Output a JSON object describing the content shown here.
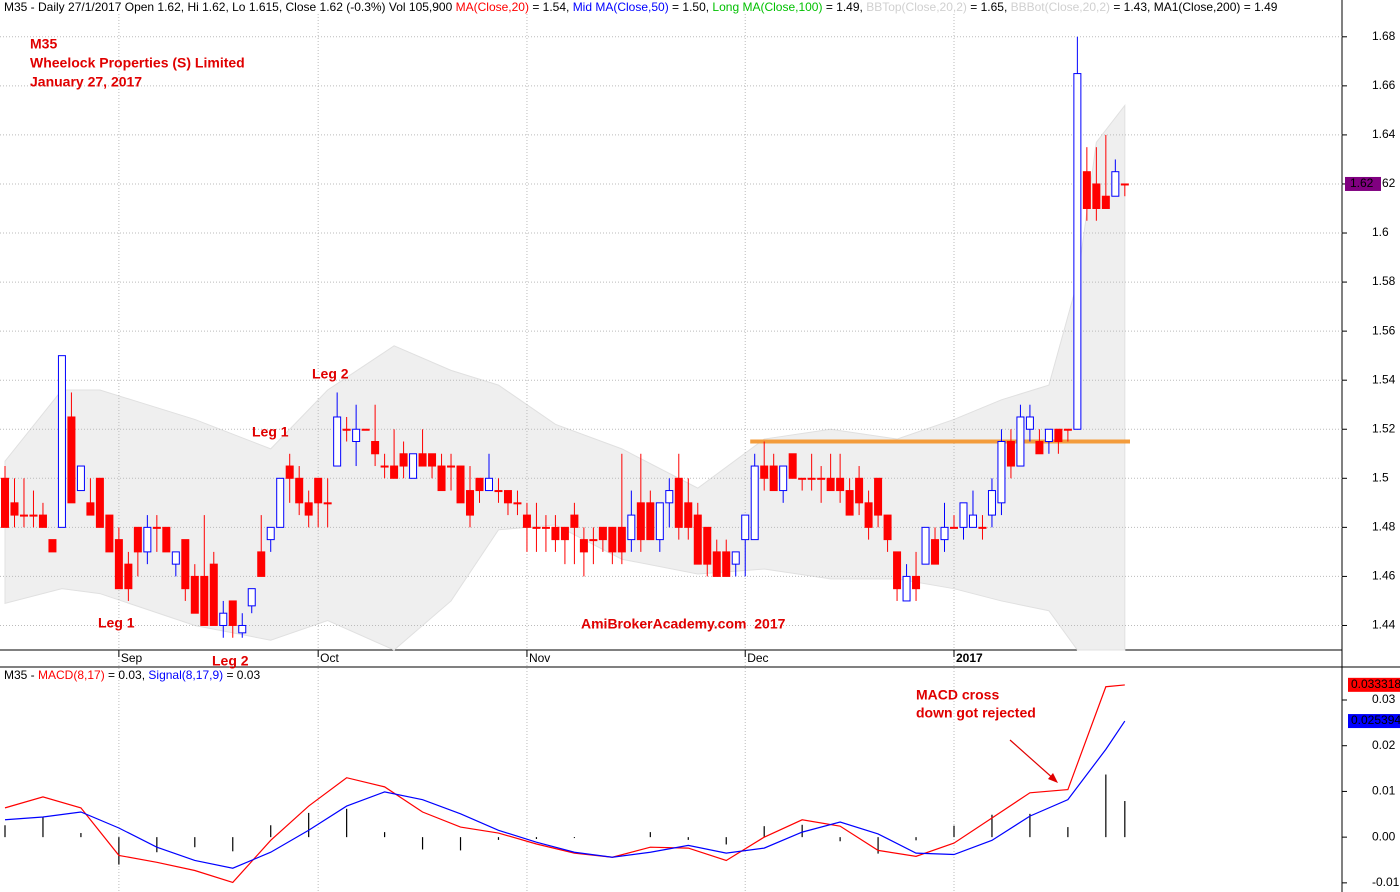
{
  "chart_data": [
    {
      "type": "candlestick",
      "header": [
        {
          "text": "M35 - Daily 27/1/2017 Open 1.62, Hi 1.62, Lo 1.615, Close 1.62 (-0.3%) Vol 105,900 ",
          "color": "#000000"
        },
        {
          "text": "MA(Close,20)",
          "color": "#ff0000"
        },
        {
          "text": " = 1.54, ",
          "color": "#000000"
        },
        {
          "text": "Mid MA(Close,50)",
          "color": "#0000ff"
        },
        {
          "text": " = 1.50, ",
          "color": "#000000"
        },
        {
          "text": "Long MA(Close,100)",
          "color": "#00c000"
        },
        {
          "text": " = 1.49, ",
          "color": "#000000"
        },
        {
          "text": "BBTop(Close,20,2)",
          "color": "#d0d0d0"
        },
        {
          "text": " = 1.65, ",
          "color": "#000000"
        },
        {
          "text": "BBBot(Close,20,2)",
          "color": "#d0d0d0"
        },
        {
          "text": " = 1.43, MA1(Close,200) = 1.49",
          "color": "#000000"
        }
      ],
      "title_lines": [
        "M35",
        "Wheelock Properties (S) Limited",
        "January 27, 2017"
      ],
      "labels": [
        "Leg 1",
        "Leg 2",
        "Leg 1",
        "Leg 2"
      ],
      "watermark": "AmiBrokerAcademy.com  2017",
      "categories": [
        null,
        null,
        null,
        null,
        null,
        null,
        null,
        null,
        null,
        null,
        null,
        null,
        null,
        null,
        null,
        null,
        null,
        null,
        null,
        null,
        null,
        null,
        null,
        null,
        null,
        null,
        null,
        null,
        null,
        null,
        null,
        null,
        null,
        null,
        null,
        null,
        null,
        null,
        null,
        null,
        null,
        null,
        null,
        null,
        null,
        null,
        null,
        null,
        null,
        null,
        null,
        null,
        null,
        null,
        null,
        null,
        null,
        null,
        null,
        null,
        null,
        null,
        null,
        null,
        null,
        null,
        null,
        null,
        null,
        null,
        null,
        null,
        null,
        null,
        null,
        null,
        null,
        null,
        null,
        null,
        null,
        null,
        null,
        null,
        null,
        null,
        null,
        null,
        null,
        null,
        null,
        null,
        null,
        null,
        null,
        null,
        null,
        null,
        null,
        null,
        null,
        null,
        null,
        null,
        null,
        null,
        null,
        null,
        null,
        null,
        null,
        null,
        null,
        null,
        null,
        null,
        null,
        null,
        null
      ],
      "open": [
        1.5,
        1.49,
        1.485,
        1.485,
        1.485,
        1.475,
        1.48,
        1.525,
        1.495,
        1.49,
        1.5,
        1.485,
        1.475,
        1.465,
        1.48,
        1.47,
        1.48,
        1.48,
        1.465,
        1.475,
        1.46,
        1.46,
        1.465,
        1.44,
        1.45,
        1.437,
        1.448,
        1.47,
        1.475,
        1.48,
        1.505,
        1.5,
        1.49,
        1.5,
        1.49,
        1.505,
        1.52,
        1.515,
        1.52,
        1.515,
        1.505,
        1.505,
        1.51,
        1.5,
        1.51,
        1.51,
        1.505,
        1.505,
        1.505,
        1.495,
        1.5,
        1.495,
        1.495,
        1.495,
        1.49,
        1.485,
        1.48,
        1.48,
        1.48,
        1.48,
        1.485,
        1.475,
        1.475,
        1.48,
        1.48,
        1.48,
        1.475,
        1.49,
        1.49,
        1.475,
        1.49,
        1.5,
        1.49,
        1.485,
        1.48,
        1.47,
        1.47,
        1.465,
        1.475,
        1.475,
        1.505,
        1.505,
        1.495,
        1.51,
        1.5,
        1.5,
        1.5,
        1.5,
        1.5,
        1.495,
        1.5,
        1.49,
        1.5,
        1.485,
        1.47,
        1.45,
        1.46,
        1.465,
        1.475,
        1.475,
        1.48,
        1.48,
        1.48,
        1.48,
        1.485,
        1.49,
        1.515,
        1.505,
        1.52,
        1.515,
        1.515,
        1.52,
        1.52,
        1.52,
        1.625,
        1.62,
        1.615,
        1.615,
        1.62
      ],
      "high": [
        1.505,
        1.5,
        1.5,
        1.495,
        1.49,
        1.475,
        1.55,
        1.535,
        1.505,
        1.5,
        1.5,
        1.485,
        1.48,
        1.47,
        1.48,
        1.485,
        1.485,
        1.48,
        1.47,
        1.475,
        1.465,
        1.485,
        1.47,
        1.45,
        1.45,
        1.445,
        1.455,
        1.485,
        1.48,
        1.5,
        1.51,
        1.505,
        1.495,
        1.5,
        1.5,
        1.535,
        1.525,
        1.53,
        1.52,
        1.53,
        1.51,
        1.52,
        1.515,
        1.51,
        1.52,
        1.51,
        1.51,
        1.51,
        1.505,
        1.505,
        1.5,
        1.51,
        1.5,
        1.495,
        1.495,
        1.49,
        1.49,
        1.485,
        1.485,
        1.48,
        1.49,
        1.48,
        1.48,
        1.48,
        1.48,
        1.51,
        1.495,
        1.51,
        1.495,
        1.49,
        1.5,
        1.51,
        1.5,
        1.49,
        1.48,
        1.475,
        1.475,
        1.47,
        1.485,
        1.51,
        1.515,
        1.51,
        1.505,
        1.51,
        1.5,
        1.51,
        1.505,
        1.51,
        1.51,
        1.5,
        1.505,
        1.495,
        1.5,
        1.485,
        1.47,
        1.465,
        1.47,
        1.48,
        1.48,
        1.49,
        1.485,
        1.49,
        1.495,
        1.485,
        1.5,
        1.52,
        1.52,
        1.53,
        1.53,
        1.52,
        1.52,
        1.52,
        1.52,
        1.68,
        1.635,
        1.635,
        1.64,
        1.63,
        1.62
      ],
      "low": [
        1.48,
        1.48,
        1.48,
        1.48,
        1.48,
        1.47,
        1.48,
        1.49,
        1.495,
        1.485,
        1.48,
        1.47,
        1.455,
        1.45,
        1.46,
        1.465,
        1.47,
        1.47,
        1.46,
        1.45,
        1.445,
        1.44,
        1.44,
        1.435,
        1.435,
        1.435,
        1.445,
        1.46,
        1.47,
        1.48,
        1.49,
        1.485,
        1.48,
        1.48,
        1.48,
        1.505,
        1.515,
        1.505,
        1.52,
        1.505,
        1.5,
        1.5,
        1.5,
        1.5,
        1.505,
        1.5,
        1.495,
        1.495,
        1.49,
        1.48,
        1.49,
        1.495,
        1.49,
        1.485,
        1.485,
        1.47,
        1.47,
        1.47,
        1.47,
        1.465,
        1.465,
        1.46,
        1.465,
        1.47,
        1.465,
        1.465,
        1.47,
        1.47,
        1.475,
        1.47,
        1.48,
        1.475,
        1.475,
        1.465,
        1.46,
        1.46,
        1.46,
        1.46,
        1.46,
        1.475,
        1.495,
        1.495,
        1.49,
        1.5,
        1.495,
        1.495,
        1.49,
        1.495,
        1.49,
        1.485,
        1.485,
        1.475,
        1.48,
        1.47,
        1.45,
        1.45,
        1.45,
        1.465,
        1.465,
        1.47,
        1.48,
        1.475,
        1.48,
        1.475,
        1.48,
        1.485,
        1.5,
        1.505,
        1.515,
        1.51,
        1.51,
        1.51,
        1.515,
        1.52,
        1.605,
        1.605,
        1.61,
        1.615,
        1.615
      ],
      "close": [
        1.48,
        1.485,
        1.485,
        1.485,
        1.48,
        1.47,
        1.55,
        1.49,
        1.505,
        1.485,
        1.48,
        1.47,
        1.455,
        1.455,
        1.47,
        1.48,
        1.48,
        1.47,
        1.47,
        1.455,
        1.445,
        1.44,
        1.44,
        1.445,
        1.44,
        1.44,
        1.455,
        1.46,
        1.48,
        1.5,
        1.5,
        1.49,
        1.485,
        1.49,
        1.49,
        1.525,
        1.52,
        1.52,
        1.52,
        1.51,
        1.505,
        1.5,
        1.505,
        1.51,
        1.505,
        1.505,
        1.495,
        1.505,
        1.49,
        1.485,
        1.495,
        1.5,
        1.495,
        1.49,
        1.49,
        1.48,
        1.48,
        1.48,
        1.475,
        1.475,
        1.48,
        1.47,
        1.475,
        1.475,
        1.47,
        1.47,
        1.485,
        1.475,
        1.475,
        1.49,
        1.495,
        1.48,
        1.48,
        1.465,
        1.465,
        1.46,
        1.46,
        1.47,
        1.485,
        1.505,
        1.5,
        1.495,
        1.505,
        1.5,
        1.5,
        1.5,
        1.5,
        1.495,
        1.495,
        1.485,
        1.49,
        1.48,
        1.485,
        1.475,
        1.455,
        1.46,
        1.455,
        1.48,
        1.465,
        1.48,
        1.48,
        1.49,
        1.485,
        1.48,
        1.495,
        1.515,
        1.505,
        1.525,
        1.525,
        1.51,
        1.52,
        1.515,
        1.52,
        1.665,
        1.61,
        1.61,
        1.61,
        1.625,
        1.62
      ],
      "up_color": "#0000ff",
      "down_color": "#ff0000",
      "band": {
        "x": [
          0,
          6,
          10,
          20,
          28,
          34,
          41,
          47,
          52,
          58,
          65,
          73,
          80,
          87,
          94,
          100,
          105,
          110,
          113,
          115,
          118
        ],
        "upper": [
          1.507,
          1.536,
          1.536,
          1.524,
          1.512,
          1.536,
          1.554,
          1.544,
          1.538,
          1.522,
          1.512,
          1.496,
          1.516,
          1.52,
          1.516,
          1.524,
          1.532,
          1.538,
          1.58,
          1.637,
          1.652
        ],
        "lower": [
          1.449,
          1.455,
          1.453,
          1.44,
          1.434,
          1.442,
          1.43,
          1.45,
          1.479,
          1.481,
          1.467,
          1.461,
          1.463,
          1.459,
          1.459,
          1.455,
          1.45,
          1.446,
          1.43,
          1.43,
          1.43
        ],
        "color": "#efefef"
      },
      "hline": {
        "value": 1.515,
        "color": "#f39c3c"
      },
      "last_price": 1.62,
      "last_color": "#800080",
      "xticks": [
        {
          "value": 12,
          "label": "Sep"
        },
        {
          "value": 33,
          "label": "Oct"
        },
        {
          "value": 55,
          "label": "Nov"
        },
        {
          "value": 78,
          "label": "Dec"
        },
        {
          "value": 100,
          "label": "2017"
        }
      ],
      "ylim": [
        1.43,
        1.695
      ],
      "yticks": [
        1.44,
        1.46,
        1.48,
        1.5,
        1.52,
        1.54,
        1.56,
        1.58,
        1.6,
        1.62,
        1.64,
        1.66,
        1.68
      ],
      "grid": true
    },
    {
      "type": "macd",
      "header": [
        {
          "text": "M35 - ",
          "color": "#000000"
        },
        {
          "text": "MACD(8,17)",
          "color": "#ff0000"
        },
        {
          "text": " = 0.03, ",
          "color": "#000000"
        },
        {
          "text": "Signal(8,17,9)",
          "color": "#0000ff"
        },
        {
          "text": " = 0.03",
          "color": "#000000"
        }
      ],
      "annotation": [
        "MACD cross",
        "down got rejected"
      ],
      "x": [
        0,
        4,
        8,
        12,
        16,
        20,
        24,
        28,
        32,
        36,
        40,
        44,
        48,
        52,
        56,
        60,
        64,
        68,
        72,
        76,
        80,
        84,
        88,
        92,
        96,
        100,
        104,
        108,
        112,
        116,
        118
      ],
      "series": [
        {
          "color": "#ff0000",
          "last": 0.033318,
          "values": [
            0.0064,
            0.0088,
            0.0064,
            -0.004,
            -0.0055,
            -0.0073,
            -0.0099,
            -0.0007,
            0.0068,
            0.013,
            0.011,
            0.0055,
            0.0022,
            0.0009,
            -0.0015,
            -0.0035,
            -0.0044,
            -0.0022,
            -0.0024,
            -0.0051,
            0.0,
            0.0038,
            0.0024,
            -0.0029,
            -0.0042,
            -0.0013,
            0.0042,
            0.0097,
            0.0104,
            0.0329,
            0.0333
          ]
        },
        {
          "color": "#0000ff",
          "last": 0.025394,
          "values": [
            0.0038,
            0.0044,
            0.0055,
            0.002,
            -0.0022,
            -0.0051,
            -0.0068,
            -0.0033,
            0.0015,
            0.0068,
            0.0099,
            0.0082,
            0.0051,
            0.0015,
            -0.0011,
            -0.0033,
            -0.0044,
            -0.0033,
            -0.0018,
            -0.0035,
            -0.0024,
            0.0011,
            0.0033,
            0.0007,
            -0.0035,
            -0.0038,
            -0.0007,
            0.0046,
            0.0082,
            0.0192,
            0.0254
          ]
        }
      ],
      "histogram": {
        "color": "#000000",
        "values": [
          0.0026,
          0.0044,
          0.0009,
          -0.006,
          -0.0033,
          -0.0022,
          -0.0031,
          0.0026,
          0.0053,
          0.0062,
          0.0011,
          -0.0027,
          -0.0029,
          -0.0006,
          -0.0004,
          -0.0002,
          0.0,
          0.0011,
          -0.0006,
          -0.0016,
          0.0024,
          0.0027,
          -0.0009,
          -0.0036,
          -0.0007,
          0.0025,
          0.0049,
          0.0051,
          0.0022,
          0.0137,
          0.0079
        ]
      },
      "ylim": [
        -0.012,
        0.037
      ],
      "yticks": [
        -0.01,
        {
          "value": 0,
          "label": "0.00"
        },
        0.01,
        0.02,
        0.03
      ],
      "grid": true
    }
  ]
}
